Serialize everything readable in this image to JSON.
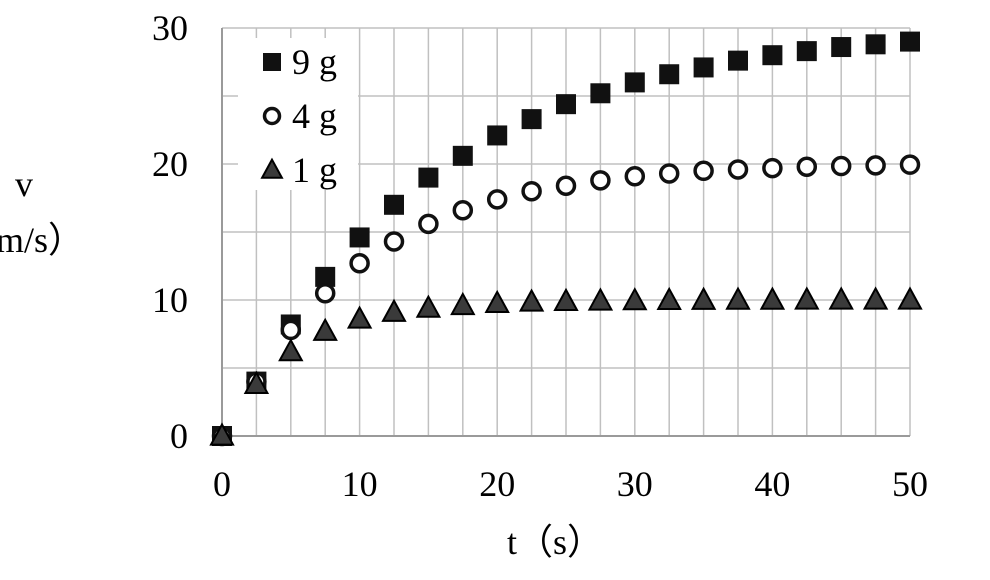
{
  "chart_data": {
    "type": "scatter",
    "title": "",
    "xlabel": "t（s）",
    "ylabel_lines": [
      "v",
      "m/s）"
    ],
    "xlim": [
      0,
      50
    ],
    "ylim": [
      0,
      30
    ],
    "x_ticks": [
      0,
      10,
      20,
      30,
      40,
      50
    ],
    "y_ticks": [
      0,
      10,
      20,
      30
    ],
    "x_minor_gridlines": [
      2.5,
      5,
      7.5,
      12.5,
      15,
      17.5,
      22.5,
      25,
      27.5,
      32.5,
      35,
      37.5,
      42.5,
      45,
      47.5
    ],
    "y_minor_gridlines": [
      5,
      15,
      25
    ],
    "grid": true,
    "legend_position": "top-left",
    "series": [
      {
        "name": "9 g",
        "marker": "square-filled",
        "x": [
          0,
          2.5,
          5,
          7.5,
          10,
          12.5,
          15,
          17.5,
          20,
          22.5,
          25,
          27.5,
          30,
          32.5,
          35,
          37.5,
          40,
          42.5,
          45,
          47.5,
          50
        ],
        "y": [
          0,
          4.0,
          8.2,
          11.7,
          14.6,
          17.0,
          19.0,
          20.6,
          22.1,
          23.3,
          24.4,
          25.2,
          26.0,
          26.6,
          27.1,
          27.6,
          28.0,
          28.3,
          28.6,
          28.8,
          29.0
        ]
      },
      {
        "name": "4 g",
        "marker": "circle-open",
        "x": [
          0,
          2.5,
          5,
          7.5,
          10,
          12.5,
          15,
          17.5,
          20,
          22.5,
          25,
          27.5,
          30,
          32.5,
          35,
          37.5,
          40,
          42.5,
          45,
          47.5,
          50
        ],
        "y": [
          0,
          4.0,
          7.8,
          10.5,
          12.7,
          14.3,
          15.6,
          16.6,
          17.4,
          18.0,
          18.4,
          18.8,
          19.1,
          19.3,
          19.5,
          19.6,
          19.7,
          19.8,
          19.85,
          19.9,
          19.95
        ]
      },
      {
        "name": "1 g",
        "marker": "triangle-filled",
        "x": [
          0,
          2.5,
          5,
          7.5,
          10,
          12.5,
          15,
          17.5,
          20,
          22.5,
          25,
          27.5,
          30,
          32.5,
          35,
          37.5,
          40,
          42.5,
          45,
          47.5,
          50
        ],
        "y": [
          0,
          3.8,
          6.2,
          7.7,
          8.6,
          9.1,
          9.4,
          9.6,
          9.75,
          9.85,
          9.9,
          9.93,
          9.95,
          9.97,
          9.98,
          9.99,
          9.99,
          10.0,
          10.0,
          10.0,
          10.0
        ]
      }
    ],
    "colors": {
      "marker_fill": "#111111",
      "triangle_fill": "#3a3a3a",
      "grid": "#c0c0c0"
    }
  }
}
